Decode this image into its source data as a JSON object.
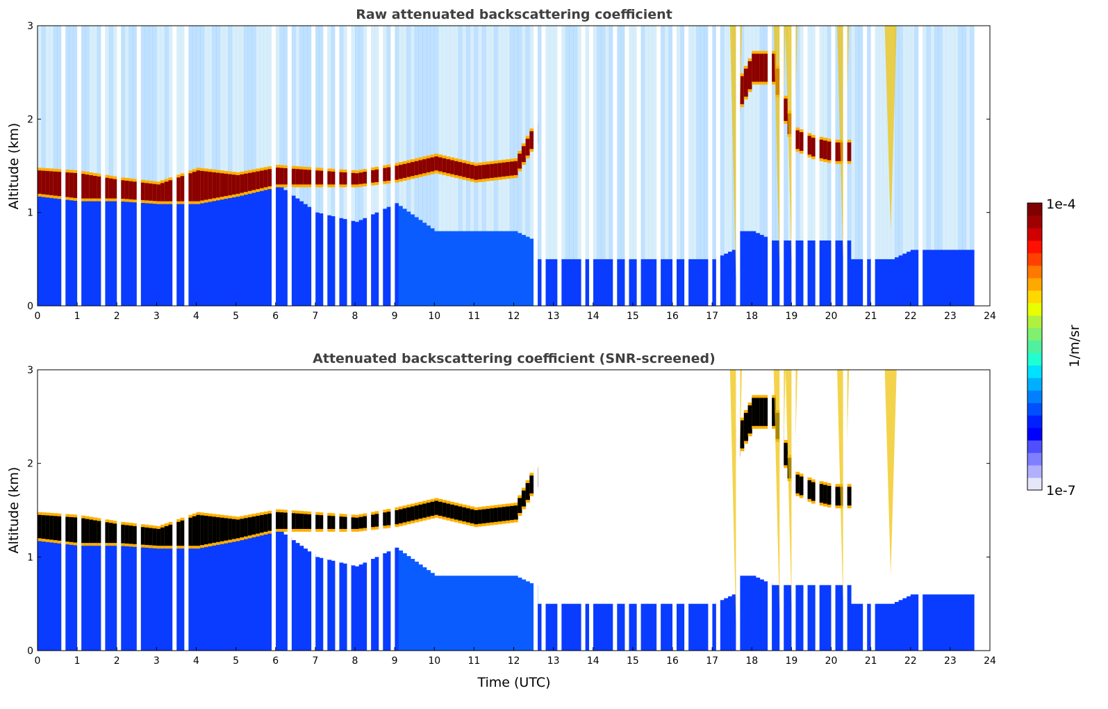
{
  "chart_data": [
    {
      "type": "heatmap",
      "title": "Raw attenuated backscattering coefficient",
      "xlabel": "",
      "ylabel": "Altitude (km)",
      "xlim": [
        0,
        24
      ],
      "ylim": [
        0,
        3
      ],
      "xticks": [
        0,
        1,
        2,
        3,
        4,
        5,
        6,
        7,
        8,
        9,
        10,
        11,
        12,
        13,
        14,
        15,
        16,
        17,
        18,
        19,
        20,
        21,
        22,
        23,
        24
      ],
      "yticks": [
        0,
        1,
        2,
        3
      ],
      "screened": false
    },
    {
      "type": "heatmap",
      "title": "Attenuated backscattering coefficient (SNR-screened)",
      "xlabel": "Time (UTC)",
      "ylabel": "Altitude (km)",
      "xlim": [
        0,
        24
      ],
      "ylim": [
        0,
        3
      ],
      "xticks": [
        0,
        1,
        2,
        3,
        4,
        5,
        6,
        7,
        8,
        9,
        10,
        11,
        12,
        13,
        14,
        15,
        16,
        17,
        18,
        19,
        20,
        21,
        22,
        23,
        24
      ],
      "yticks": [
        0,
        1,
        2,
        3
      ],
      "screened": true
    }
  ],
  "colorbar": {
    "label": "1/m/sr",
    "min_label": "1e-7",
    "max_label": "1e-4",
    "scale": "log",
    "colors": [
      "#e6e6fa",
      "#b0b0ff",
      "#7f7fff",
      "#4f4fff",
      "#0000ff",
      "#0020ff",
      "#0050ff",
      "#0080ff",
      "#00b0ff",
      "#00e0ff",
      "#20ffd0",
      "#50f0a0",
      "#80f070",
      "#b0f040",
      "#e8ff00",
      "#ffd800",
      "#ffa800",
      "#ff7800",
      "#ff4000",
      "#ff1000",
      "#d00000",
      "#a00000",
      "#800000"
    ]
  },
  "profile": {
    "time_h": [
      0,
      1,
      2,
      3,
      4,
      5,
      6,
      7,
      8,
      9,
      10,
      11,
      12,
      12.5,
      17,
      17.5,
      18,
      18.5,
      19,
      19.5,
      20,
      20.5,
      21,
      21.5,
      22,
      23,
      23.6
    ],
    "cloud_base_km": [
      1.2,
      1.15,
      1.15,
      1.12,
      1.12,
      1.2,
      1.3,
      1.3,
      1.3,
      1.35,
      1.45,
      1.35,
      1.4,
      1.75,
      null,
      2.0,
      2.4,
      2.4,
      1.7,
      1.6,
      1.55,
      1.55,
      null,
      null,
      null,
      null,
      null
    ],
    "cloud_top_km": [
      1.45,
      1.42,
      1.35,
      1.3,
      1.45,
      1.4,
      1.48,
      1.45,
      1.42,
      1.5,
      1.6,
      1.5,
      1.55,
      1.95,
      null,
      2.3,
      2.7,
      2.7,
      1.9,
      1.8,
      1.75,
      1.75,
      null,
      null,
      null,
      null,
      null
    ],
    "aerosol_top_km": [
      1.2,
      1.15,
      1.1,
      1.1,
      1.1,
      1.1,
      1.1,
      0.8,
      0.7,
      0.9,
      0.6,
      0.6,
      0.6,
      0.5,
      0.5,
      0.6,
      0.6,
      0.5,
      0.5,
      0.5,
      0.5,
      0.5,
      0.5,
      0.5,
      0.6,
      0.6,
      0.6
    ],
    "data_end_h": 23.6,
    "gap_times_h": [
      0.6,
      1.0,
      1.6,
      2.0,
      2.5,
      3.4,
      3.7,
      5.9,
      6.3,
      6.9,
      7.2,
      7.5,
      7.8,
      8.3,
      8.6,
      8.9,
      12.5,
      12.7,
      13.1,
      13.7,
      13.9,
      14.5,
      14.8,
      15.1,
      15.6,
      16.0,
      16.3,
      16.9,
      17.1,
      17.6,
      18.4,
      18.7,
      19.0,
      19.3,
      19.6,
      20.0,
      20.3,
      20.8,
      21.0,
      22.2
    ]
  }
}
